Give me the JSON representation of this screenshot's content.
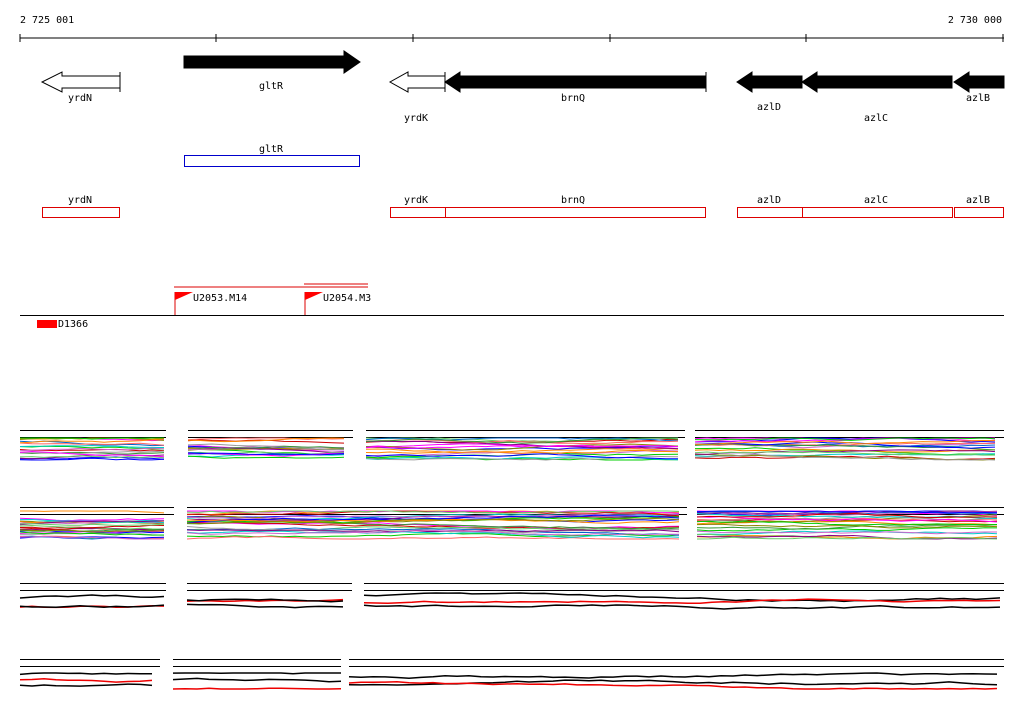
{
  "ruler": {
    "start": "2 725 001",
    "end": "2 730 000"
  },
  "genes": [
    "yrdN",
    "gltR",
    "yrdK",
    "brnQ",
    "azlD",
    "azlC",
    "azlB"
  ],
  "operon_track": [
    "gltR"
  ],
  "feature_track": [
    "yrdN",
    "yrdK",
    "brnQ",
    "azlD",
    "azlC",
    "azlB"
  ],
  "probes": [
    "U2053.M14",
    "U2054.M3"
  ],
  "marker": "D1366"
}
